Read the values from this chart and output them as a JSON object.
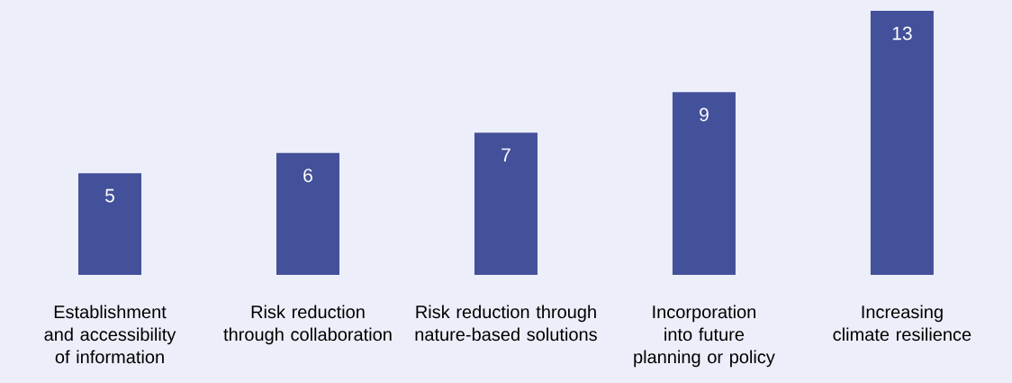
{
  "chart_data": {
    "type": "bar",
    "categories": [
      "Establishment and accessibility of information",
      "Risk reduction through collaboration",
      "Risk reduction through nature-based solutions",
      "Incorporation into future planning or policy",
      "Increasing climate resilience"
    ],
    "values": [
      5,
      6,
      7,
      9,
      13
    ],
    "color": "#43509a",
    "data_labels": true,
    "ylim": [
      0,
      13
    ]
  }
}
